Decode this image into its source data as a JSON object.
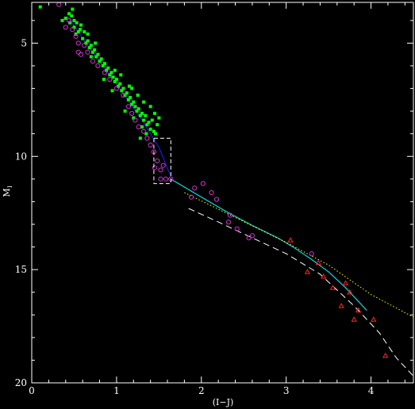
{
  "chart_data": {
    "type": "scatter",
    "title": "",
    "xlabel": "(I−J)",
    "ylabel": "M",
    "ylabel_subscript": "I",
    "xlim": [
      0,
      4.5
    ],
    "ylim": [
      20,
      3.2
    ],
    "y_inverted": true,
    "grid": false,
    "x_ticks": [
      0,
      1,
      2,
      3,
      4
    ],
    "y_ticks": [
      5,
      10,
      15,
      20
    ],
    "x_tick_labels": [
      "0",
      "1",
      "2",
      "3",
      "4"
    ],
    "y_tick_labels": [
      "5",
      "10",
      "15",
      "20"
    ],
    "background_color": "#000000",
    "series": [
      {
        "marker": "filled-square",
        "color": "#00ff00",
        "points": [
          [
            0.1,
            3.4
          ],
          [
            0.36,
            4.0
          ],
          [
            0.4,
            3.9
          ],
          [
            0.44,
            3.7
          ],
          [
            0.47,
            3.8
          ],
          [
            0.45,
            4.1
          ],
          [
            0.5,
            4.0
          ],
          [
            0.5,
            4.3
          ],
          [
            0.53,
            4.1
          ],
          [
            0.55,
            4.5
          ],
          [
            0.57,
            4.4
          ],
          [
            0.52,
            4.6
          ],
          [
            0.6,
            4.8
          ],
          [
            0.62,
            4.5
          ],
          [
            0.64,
            5.0
          ],
          [
            0.66,
            4.9
          ],
          [
            0.68,
            5.2
          ],
          [
            0.7,
            5.1
          ],
          [
            0.72,
            5.4
          ],
          [
            0.74,
            5.3
          ],
          [
            0.76,
            5.6
          ],
          [
            0.78,
            5.5
          ],
          [
            0.8,
            5.8
          ],
          [
            0.82,
            5.7
          ],
          [
            0.7,
            5.6
          ],
          [
            0.84,
            6.0
          ],
          [
            0.86,
            5.9
          ],
          [
            0.88,
            6.2
          ],
          [
            0.9,
            6.1
          ],
          [
            0.92,
            6.4
          ],
          [
            0.94,
            6.3
          ],
          [
            0.96,
            6.5
          ],
          [
            0.98,
            6.7
          ],
          [
            1.0,
            6.6
          ],
          [
            0.85,
            6.6
          ],
          [
            1.02,
            6.9
          ],
          [
            1.04,
            6.8
          ],
          [
            1.06,
            7.1
          ],
          [
            1.08,
            7.0
          ],
          [
            1.1,
            7.3
          ],
          [
            1.12,
            7.2
          ],
          [
            1.14,
            7.5
          ],
          [
            1.16,
            7.4
          ],
          [
            1.18,
            7.7
          ],
          [
            1.2,
            7.6
          ],
          [
            0.95,
            7.1
          ],
          [
            1.22,
            7.8
          ],
          [
            1.24,
            8.0
          ],
          [
            1.26,
            7.9
          ],
          [
            1.28,
            8.2
          ],
          [
            1.3,
            8.1
          ],
          [
            1.32,
            8.4
          ],
          [
            1.34,
            8.2
          ],
          [
            1.36,
            8.6
          ],
          [
            1.38,
            8.5
          ],
          [
            1.4,
            8.8
          ],
          [
            1.42,
            8.4
          ],
          [
            1.44,
            8.9
          ],
          [
            1.46,
            9.0
          ],
          [
            1.48,
            8.6
          ],
          [
            1.3,
            8.7
          ],
          [
            1.4,
            7.8
          ],
          [
            1.45,
            8.1
          ],
          [
            1.2,
            8.3
          ],
          [
            1.25,
            7.3
          ],
          [
            1.15,
            6.9
          ],
          [
            1.05,
            6.4
          ],
          [
            1.5,
            8.3
          ],
          [
            1.35,
            9.0
          ],
          [
            1.28,
            9.2
          ],
          [
            0.98,
            6.2
          ],
          [
            0.75,
            5.0
          ],
          [
            0.66,
            4.6
          ],
          [
            0.58,
            4.2
          ],
          [
            0.48,
            3.5
          ],
          [
            1.1,
            8.0
          ],
          [
            1.18,
            7.0
          ],
          [
            1.32,
            7.6
          ]
        ]
      },
      {
        "marker": "open-circle",
        "color": "#cc33cc",
        "points": [
          [
            0.32,
            3.3
          ],
          [
            0.4,
            4.3
          ],
          [
            0.44,
            4.0
          ],
          [
            0.48,
            4.4
          ],
          [
            0.52,
            4.7
          ],
          [
            0.55,
            5.0
          ],
          [
            0.58,
            5.5
          ],
          [
            0.55,
            5.4
          ],
          [
            0.62,
            5.1
          ],
          [
            0.66,
            5.4
          ],
          [
            0.72,
            5.8
          ],
          [
            0.78,
            6.0
          ],
          [
            0.86,
            6.3
          ],
          [
            0.92,
            6.6
          ],
          [
            1.0,
            7.0
          ],
          [
            1.08,
            7.3
          ],
          [
            1.14,
            7.8
          ],
          [
            1.18,
            8.1
          ],
          [
            1.22,
            8.4
          ],
          [
            1.26,
            8.7
          ],
          [
            1.32,
            8.9
          ],
          [
            1.36,
            9.2
          ],
          [
            1.4,
            9.5
          ],
          [
            1.44,
            9.8
          ],
          [
            1.48,
            10.2
          ],
          [
            1.45,
            10.5
          ],
          [
            1.52,
            10.6
          ],
          [
            1.55,
            10.4
          ],
          [
            1.58,
            11.0
          ],
          [
            1.52,
            11.0
          ],
          [
            1.64,
            11.0
          ],
          [
            1.88,
            11.8
          ],
          [
            1.92,
            11.4
          ],
          [
            2.02,
            11.2
          ],
          [
            2.12,
            11.6
          ],
          [
            2.18,
            11.9
          ],
          [
            2.34,
            12.6
          ],
          [
            2.32,
            12.9
          ],
          [
            2.42,
            13.2
          ],
          [
            2.56,
            13.6
          ],
          [
            2.6,
            13.5
          ],
          [
            3.3,
            14.3
          ]
        ]
      },
      {
        "marker": "open-triangle",
        "color": "#ff2222",
        "points": [
          [
            3.05,
            13.7
          ],
          [
            3.25,
            15.1
          ],
          [
            3.38,
            14.7
          ],
          [
            3.44,
            15.3
          ],
          [
            3.55,
            15.8
          ],
          [
            3.65,
            16.6
          ],
          [
            3.7,
            15.6
          ],
          [
            3.75,
            16.0
          ],
          [
            3.8,
            17.2
          ],
          [
            3.85,
            16.8
          ],
          [
            4.03,
            17.2
          ],
          [
            4.17,
            18.8
          ]
        ]
      }
    ],
    "lines": [
      {
        "style": "solid",
        "color": "#00ffff",
        "points": [
          [
            1.64,
            11.0
          ],
          [
            2.0,
            11.8
          ],
          [
            2.3,
            12.45
          ],
          [
            2.6,
            13.05
          ],
          [
            2.9,
            13.6
          ],
          [
            3.1,
            14.05
          ],
          [
            3.3,
            14.55
          ],
          [
            3.5,
            15.1
          ],
          [
            3.7,
            15.8
          ],
          [
            3.85,
            16.4
          ],
          [
            3.95,
            16.8
          ]
        ]
      },
      {
        "style": "dotted",
        "color": "#ffff00",
        "points": [
          [
            1.8,
            11.6
          ],
          [
            2.4,
            12.7
          ],
          [
            3.0,
            13.8
          ],
          [
            3.5,
            14.8
          ],
          [
            4.0,
            16.1
          ],
          [
            4.5,
            17.1
          ]
        ]
      },
      {
        "style": "dashed",
        "color": "#ffffff",
        "points": [
          [
            1.85,
            12.3
          ],
          [
            2.2,
            12.9
          ],
          [
            2.6,
            13.6
          ],
          [
            3.0,
            14.3
          ],
          [
            3.4,
            15.2
          ],
          [
            3.8,
            16.6
          ],
          [
            4.1,
            17.8
          ],
          [
            4.3,
            18.9
          ],
          [
            4.5,
            19.7
          ]
        ]
      },
      {
        "style": "solid",
        "color": "#2222ff",
        "points": [
          [
            0.42,
            3.8
          ],
          [
            0.7,
            5.3
          ],
          [
            1.0,
            6.8
          ],
          [
            1.3,
            8.4
          ],
          [
            1.5,
            9.6
          ],
          [
            1.64,
            10.9
          ]
        ]
      }
    ],
    "box": {
      "style": "dashed",
      "color": "#ffffff",
      "x": [
        1.44,
        1.64
      ],
      "y": [
        9.2,
        11.2
      ]
    }
  }
}
